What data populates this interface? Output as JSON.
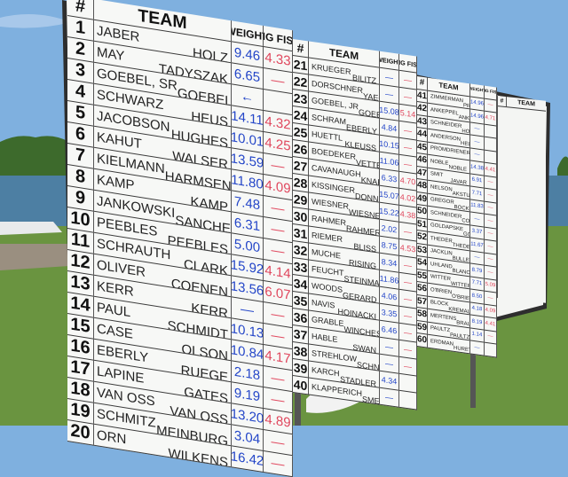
{
  "headers": {
    "num": "#",
    "team": "TEAM",
    "weight": "WEIGHT",
    "big_fish": "BIG FISH"
  },
  "colors": {
    "weight_ink": "#2446c8",
    "big_fish_ink": "#e0485e",
    "board": "#f7f8f6",
    "grass": "#5f8a3a",
    "sky": "#7fb0df"
  },
  "columns": [
    {
      "rows": [
        {
          "num": "1",
          "team1": "JABER",
          "team2": "HOLZ",
          "weight": "9.46",
          "big_fish": "4.33"
        },
        {
          "num": "2",
          "team1": "MAY",
          "team2": "TADYSZAK",
          "weight": "6.65",
          "big_fish": "—"
        },
        {
          "num": "3",
          "team1": "GOEBEL, SR",
          "team2": "GOEBEL",
          "weight": "←",
          "big_fish": ""
        },
        {
          "num": "4",
          "team1": "SCHWARZ",
          "team2": "HEUS",
          "weight": "14.11",
          "big_fish": "4.32"
        },
        {
          "num": "5",
          "team1": "JACOBSON",
          "team2": "HUGHES",
          "weight": "10.01",
          "big_fish": "4.25"
        },
        {
          "num": "6",
          "team1": "KAHUT",
          "team2": "WALSER",
          "weight": "13.59",
          "big_fish": "—"
        },
        {
          "num": "7",
          "team1": "KIELMANN",
          "team2": "HARMSEN",
          "weight": "11.80",
          "big_fish": "4.09"
        },
        {
          "num": "8",
          "team1": "KAMP",
          "team2": "KAMP",
          "weight": "7.48",
          "big_fish": "—"
        },
        {
          "num": "9",
          "team1": "JANKOWSKI",
          "team2": "SANCHEZ",
          "weight": "6.31",
          "big_fish": "—"
        },
        {
          "num": "10",
          "team1": "PEEBLES",
          "team2": "PEEBLES",
          "weight": "5.00",
          "big_fish": "—"
        },
        {
          "num": "11",
          "team1": "SCHRAUTH",
          "team2": "CLARK",
          "weight": "15.92",
          "big_fish": "4.14"
        },
        {
          "num": "12",
          "team1": "OLIVER",
          "team2": "COENEN",
          "weight": "13.56",
          "big_fish": "6.07"
        },
        {
          "num": "13",
          "team1": "KERR",
          "team2": "KERR",
          "weight": "—",
          "big_fish": "—"
        },
        {
          "num": "14",
          "team1": "PAUL",
          "team2": "SCHMIDT",
          "weight": "10.13",
          "big_fish": "—"
        },
        {
          "num": "15",
          "team1": "CASE",
          "team2": "OLSON",
          "weight": "10.84",
          "big_fish": "4.17"
        },
        {
          "num": "16",
          "team1": "EBERLY",
          "team2": "RUEGE",
          "weight": "2.18",
          "big_fish": "—"
        },
        {
          "num": "17",
          "team1": "LAPINE",
          "team2": "GATES",
          "weight": "9.19",
          "big_fish": "—"
        },
        {
          "num": "18",
          "team1": "VAN OSS",
          "team2": "VAN OSS",
          "weight": "13.20",
          "big_fish": "4.89"
        },
        {
          "num": "19",
          "team1": "SCHMITZ",
          "team2": "MEINBURG",
          "weight": "3.04",
          "big_fish": "—"
        },
        {
          "num": "20",
          "team1": "ORN",
          "team2": "WILKENS",
          "weight": "16.42",
          "big_fish": "—"
        }
      ]
    },
    {
      "rows": [
        {
          "num": "21",
          "team1": "KRUEGER",
          "team2": "BILITZ",
          "weight": "—",
          "big_fish": "—"
        },
        {
          "num": "22",
          "team1": "DORSCHNER",
          "team2": "YAEGER",
          "weight": "—",
          "big_fish": "—"
        },
        {
          "num": "23",
          "team1": "GOEBEL, JR",
          "team2": "GOEBEL",
          "weight": "15.08",
          "big_fish": "5.14"
        },
        {
          "num": "24",
          "team1": "SCHRAM",
          "team2": "EBERLY",
          "weight": "4.84",
          "big_fish": "—"
        },
        {
          "num": "25",
          "team1": "HUETTL",
          "team2": "KLEUSS",
          "weight": "10.15",
          "big_fish": "—"
        },
        {
          "num": "26",
          "team1": "BOEDEKER",
          "team2": "VETTER",
          "weight": "11.06",
          "big_fish": "—"
        },
        {
          "num": "27",
          "team1": "CAVANAUGH",
          "team2": "KNAPP",
          "weight": "6.33",
          "big_fish": "4.70"
        },
        {
          "num": "28",
          "team1": "KISSINGER",
          "team2": "DONNER",
          "weight": "15.07",
          "big_fish": "4.02"
        },
        {
          "num": "29",
          "team1": "WIESNER",
          "team2": "WIESNER",
          "weight": "15.22",
          "big_fish": "4.38"
        },
        {
          "num": "30",
          "team1": "RAHMER",
          "team2": "RAHMER",
          "weight": "2.02",
          "big_fish": "—"
        },
        {
          "num": "31",
          "team1": "RIEMER",
          "team2": "BLISS",
          "weight": "8.75",
          "big_fish": "4.53"
        },
        {
          "num": "32",
          "team1": "MUCHE",
          "team2": "RISING",
          "weight": "8.34",
          "big_fish": "—"
        },
        {
          "num": "33",
          "team1": "FEUCHT",
          "team2": "STEINMAN",
          "weight": "11.86",
          "big_fish": "—"
        },
        {
          "num": "34",
          "team1": "WOODS",
          "team2": "GERARD",
          "weight": "4.06",
          "big_fish": "—"
        },
        {
          "num": "35",
          "team1": "NAVIS",
          "team2": "HOINACKI",
          "weight": "3.35",
          "big_fish": "—"
        },
        {
          "num": "36",
          "team1": "GRABLE",
          "team2": "WINCHESTER",
          "weight": "6.46",
          "big_fish": "—"
        },
        {
          "num": "37",
          "team1": "HABLE",
          "team2": "SWAN",
          "weight": "—",
          "big_fish": "—"
        },
        {
          "num": "38",
          "team1": "STREHLOW",
          "team2": "SCHNEIDER",
          "weight": "—",
          "big_fish": "—"
        },
        {
          "num": "39",
          "team1": "KARCH",
          "team2": "STADLER",
          "weight": "4.34",
          "big_fish": ""
        },
        {
          "num": "40",
          "team1": "KLAPPERICH",
          "team2": "SMET",
          "weight": "—",
          "big_fish": ""
        }
      ]
    },
    {
      "rows": [
        {
          "num": "41",
          "team1": "ZIMMERMAN",
          "team2": "PRAY",
          "weight": "14.96",
          "big_fish": "—"
        },
        {
          "num": "42",
          "team1": "ANKEPPEL",
          "team2": "ANKEPPEL",
          "weight": "14.96",
          "big_fish": "4.71"
        },
        {
          "num": "43",
          "team1": "SCHNEIDER",
          "team2": "HOPPE",
          "weight": "—",
          "big_fish": ""
        },
        {
          "num": "44",
          "team1": "ANDERSON",
          "team2": "HELTZ",
          "weight": "—",
          "big_fish": ""
        },
        {
          "num": "45",
          "team1": "PROMDRIENERS",
          "team2": "DERMITH",
          "weight": "—",
          "big_fish": ""
        },
        {
          "num": "46",
          "team1": "NOBLE",
          "team2": "NOBLE",
          "weight": "14.38",
          "big_fish": "4.41"
        },
        {
          "num": "47",
          "team1": "SMIT",
          "team2": "JAVAR",
          "weight": "6.91",
          "big_fish": "—"
        },
        {
          "num": "48",
          "team1": "NELSON",
          "team2": "AKSTULEWICZ",
          "weight": "7.71",
          "big_fish": "—"
        },
        {
          "num": "49",
          "team1": "GREGOR",
          "team2": "BOCK",
          "weight": "11.83",
          "big_fish": "—"
        },
        {
          "num": "50",
          "team1": "SCHNEIDER",
          "team2": "COLLINS",
          "weight": "—",
          "big_fish": "—"
        },
        {
          "num": "51",
          "team1": "GOLDAPSKE",
          "team2": "GOLDAPSKE",
          "weight": "3.37",
          "big_fish": "—"
        },
        {
          "num": "52",
          "team1": "THEDER",
          "team2": "THEDER",
          "weight": "11.67",
          "big_fish": "—"
        },
        {
          "num": "53",
          "team1": "JACKLIN",
          "team2": "BULLETTE",
          "weight": "—",
          "big_fish": "—"
        },
        {
          "num": "54",
          "team1": "UHLAND",
          "team2": "BLANCK",
          "weight": "8.79",
          "big_fish": "—"
        },
        {
          "num": "55",
          "team1": "WITTER",
          "team2": "WITTER",
          "weight": "7.71",
          "big_fish": "5.09"
        },
        {
          "num": "56",
          "team1": "O'BRIEN",
          "team2": "O'BRIEN",
          "weight": "8.50",
          "big_fish": "—"
        },
        {
          "num": "57",
          "team1": "BLOCK",
          "team2": "KREMAL",
          "weight": "4.18",
          "big_fish": "4.09"
        },
        {
          "num": "58",
          "team1": "MERTENS",
          "team2": "BRAUER",
          "weight": "8.19",
          "big_fish": "4.41"
        },
        {
          "num": "59",
          "team1": "PAULTZ",
          "team2": "PAULTZ",
          "weight": "1.14",
          "big_fish": "—"
        },
        {
          "num": "60",
          "team1": "ERDMAN",
          "team2": "HURET",
          "weight": "—",
          "big_fish": ""
        }
      ]
    }
  ],
  "extra_column": {
    "num": "#",
    "team": "TEAM"
  }
}
